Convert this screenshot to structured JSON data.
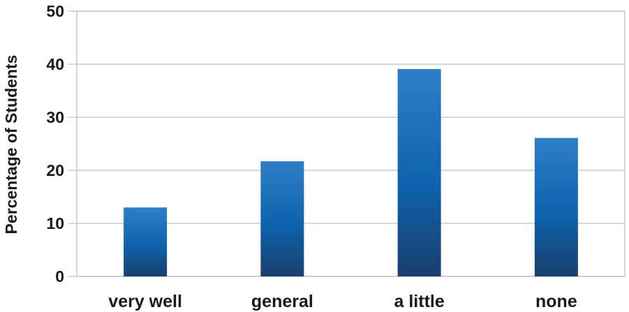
{
  "chart_data": {
    "type": "bar",
    "title": "",
    "xlabel": "",
    "ylabel": "Percentage of Students",
    "categories": [
      "very well",
      "general",
      "a little",
      "none"
    ],
    "values": [
      13,
      21.7,
      39.1,
      26.1
    ],
    "ylim": [
      0,
      50
    ],
    "yticks": [
      "0",
      "10",
      "20",
      "30",
      "40",
      "50"
    ],
    "grid": "horizontal",
    "bar_color_top": "#2f7fc8",
    "bar_color_mid": "#0d63ad",
    "bar_color_bottom": "#1a3f6e",
    "axis_color": "#c8c8c8"
  }
}
